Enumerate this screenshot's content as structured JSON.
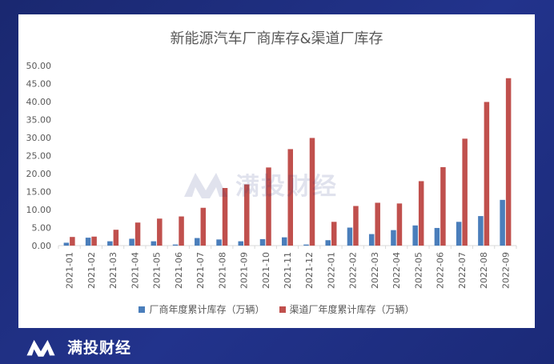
{
  "brand": {
    "name": "满投财经"
  },
  "watermark": {
    "text": "满投财经"
  },
  "chart_data": {
    "type": "bar",
    "title": "新能源汽车厂商库存&渠道厂库存",
    "xlabel": "",
    "ylabel": "",
    "ylim": [
      0,
      50
    ],
    "yticks": [
      "0.00",
      "5.00",
      "10.00",
      "15.00",
      "20.00",
      "25.00",
      "30.00",
      "35.00",
      "40.00",
      "45.00",
      "50.00"
    ],
    "categories": [
      "2021-01",
      "2021-02",
      "2021-03",
      "2021-04",
      "2021-05",
      "2021-06",
      "2021-07",
      "2021-08",
      "2021-09",
      "2021-10",
      "2021-11",
      "2021-12",
      "2022-01",
      "2022-02",
      "2022-03",
      "2022-04",
      "2022-05",
      "2022-06",
      "2022-07",
      "2022-08",
      "2022-09"
    ],
    "series": [
      {
        "name": "厂商年度累计库存（万辆）",
        "color": "#4a7ebb",
        "values": [
          0.8,
          2.2,
          1.2,
          1.9,
          1.2,
          0.3,
          2.1,
          1.7,
          1.2,
          1.8,
          2.3,
          0.3,
          1.5,
          5.0,
          3.2,
          4.3,
          5.6,
          4.9,
          6.6,
          8.2,
          12.7
        ]
      },
      {
        "name": "渠道厂年度累计库存（万辆）",
        "color": "#c0504d",
        "values": [
          2.4,
          2.5,
          4.4,
          6.4,
          7.5,
          8.1,
          10.5,
          16.0,
          17.0,
          21.7,
          26.8,
          29.9,
          6.6,
          11.0,
          11.9,
          11.7,
          17.9,
          21.8,
          29.7,
          39.9,
          46.5
        ]
      }
    ],
    "legend_position": "bottom",
    "grid": false
  }
}
